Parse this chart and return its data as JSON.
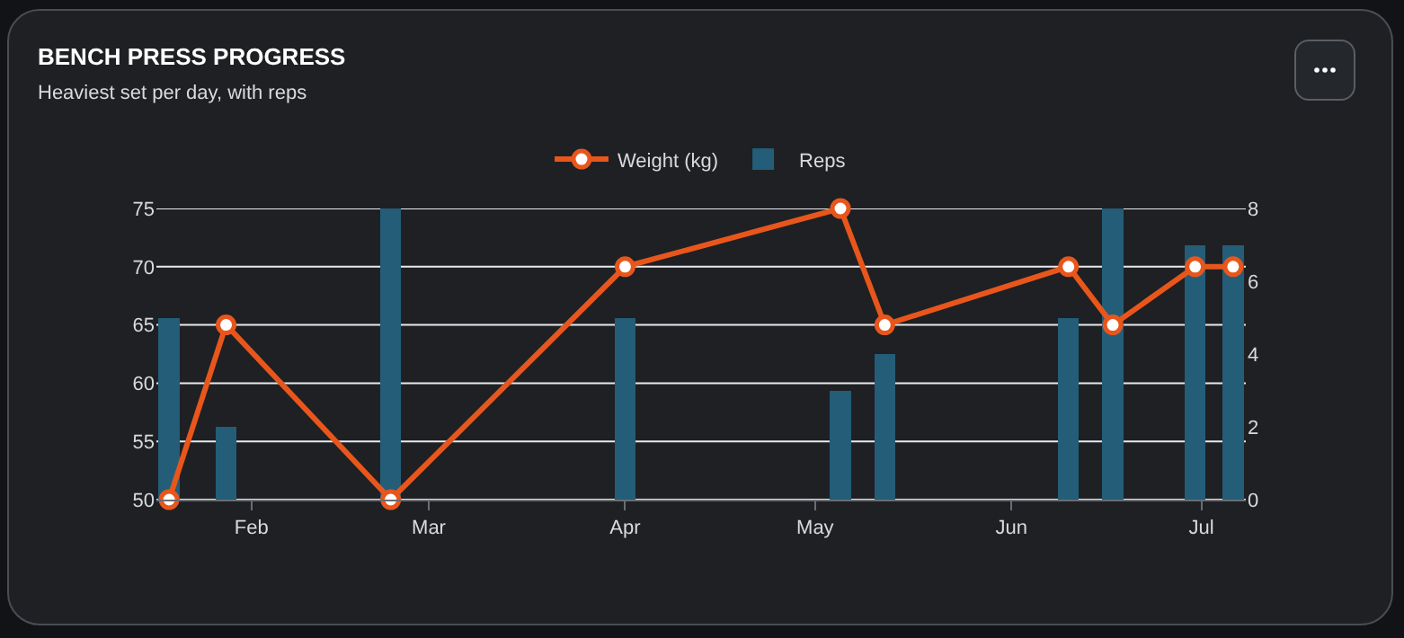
{
  "chart_data": {
    "type": "bar",
    "title": "BENCH PRESS PROGRESS",
    "subtitle": "Heaviest set per day, with reps",
    "x": [
      "--01-19",
      "--01-28",
      "--02-23",
      "--04-01",
      "--05-05",
      "--05-12",
      "--06-10",
      "--06-17",
      "--06-30",
      "--07-06"
    ],
    "series": [
      {
        "name": "Weight (kg)",
        "type": "line",
        "axis": "y",
        "color": "#e8561c",
        "marker": "circle",
        "line_style": "solid",
        "values": [
          50,
          65,
          50,
          70,
          75,
          65,
          70,
          65,
          70,
          70
        ]
      },
      {
        "name": "Reps",
        "axis": "y2",
        "color": "#245d78",
        "values": [
          5,
          2,
          8,
          5,
          3,
          4,
          5,
          8,
          7,
          7
        ]
      }
    ],
    "xlim": [
      "--01-17",
      "--07-08"
    ],
    "xticks": [
      {
        "value": "--02-01",
        "label": "Feb"
      },
      {
        "value": "--03-01",
        "label": "Mar"
      },
      {
        "value": "--04-01",
        "label": "Apr"
      },
      {
        "value": "--05-01",
        "label": "May"
      },
      {
        "value": "--06-01",
        "label": "Jun"
      },
      {
        "value": "--07-01",
        "label": "Jul"
      }
    ],
    "ylim": [
      50,
      75
    ],
    "yticks": [
      50,
      55,
      60,
      65,
      70,
      75
    ],
    "y2lim": [
      0,
      8
    ],
    "y2ticks": [
      0,
      2,
      4,
      6,
      8
    ],
    "grid": "y",
    "legend": "top"
  }
}
